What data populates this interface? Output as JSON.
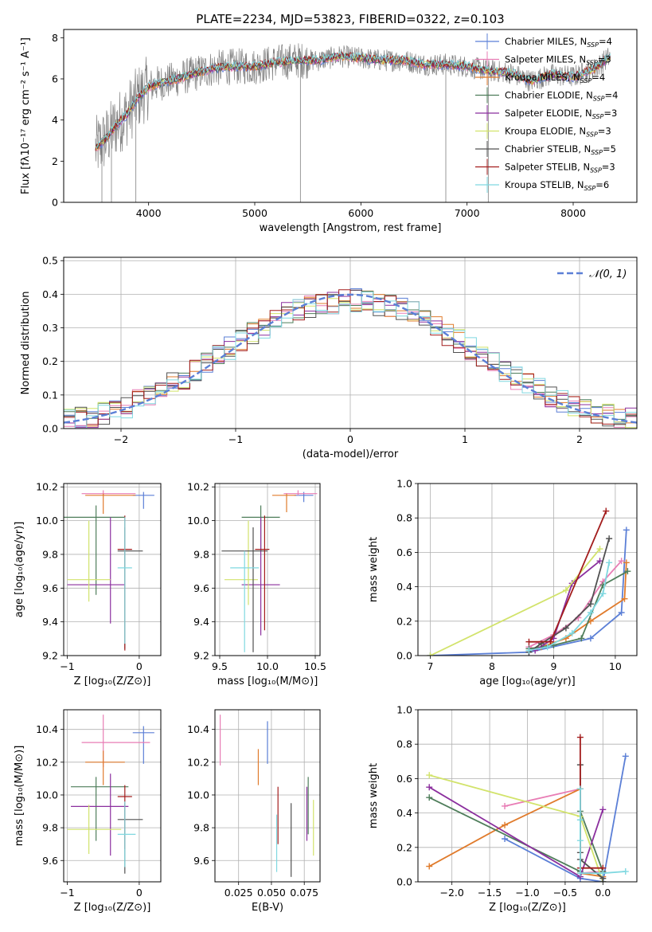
{
  "figure": {
    "title": "PLATE=2234, MJD=53823, FIBERID=0322, z=0.103"
  },
  "series_meta": [
    {
      "name": "Chabrier MILES",
      "nssp": "4",
      "color": "#5b7fd6"
    },
    {
      "name": "Salpeter MILES",
      "nssp": "3",
      "color": "#e87db5"
    },
    {
      "name": "Kroupa MILES",
      "nssp": "4",
      "color": "#e07b2c"
    },
    {
      "name": "Chabrier ELODIE",
      "nssp": "4",
      "color": "#4e7d5a"
    },
    {
      "name": "Salpeter ELODIE",
      "nssp": "3",
      "color": "#8b2f9e"
    },
    {
      "name": "Kroupa ELODIE",
      "nssp": "3",
      "color": "#d2e36b"
    },
    {
      "name": "Chabrier STELIB",
      "nssp": "5",
      "color": "#505050"
    },
    {
      "name": "Salpeter STELIB",
      "nssp": "3",
      "color": "#a31d1d"
    },
    {
      "name": "Kroupa STELIB",
      "nssp": "6",
      "color": "#7fd8e0"
    }
  ],
  "chart_data": [
    {
      "id": "spectrum",
      "type": "line",
      "xlabel": "wavelength [Angstrom, rest frame]",
      "ylabel": "Flux [fλ10⁻¹⁷ erg cm⁻² s⁻¹ A⁻¹]",
      "xlim": [
        3200,
        8600
      ],
      "ylim": [
        0,
        8.4
      ],
      "xticks": [
        4000,
        5000,
        6000,
        7000,
        8000
      ],
      "yticks": [
        0,
        2,
        4,
        6,
        8
      ],
      "data_color": "#808080",
      "data_x_range": [
        3500,
        8350
      ],
      "continuum": {
        "x": [
          3500,
          3600,
          3700,
          3800,
          3900,
          4000,
          4100,
          4200,
          4400,
          4600,
          4800,
          5000,
          5200,
          5400,
          5600,
          5800,
          6000,
          6200,
          6400,
          6600,
          6800,
          7000,
          7200,
          7400,
          7600,
          7800,
          8000,
          8200,
          8350
        ],
        "y": [
          2.6,
          3.1,
          3.8,
          4.3,
          5.1,
          5.6,
          5.8,
          5.9,
          6.2,
          6.5,
          6.6,
          6.6,
          6.8,
          6.9,
          6.9,
          7.1,
          7.0,
          6.9,
          6.9,
          6.7,
          6.7,
          6.6,
          6.4,
          6.3,
          5.9,
          6.2,
          6.1,
          6.5,
          7.1
        ]
      },
      "legend": "top-right"
    },
    {
      "id": "residual-hist",
      "type": "histogram",
      "xlabel": "(data-model)/error",
      "ylabel": "Normed distribution",
      "xlim": [
        -2.5,
        2.5
      ],
      "ylim": [
        0,
        0.51
      ],
      "xticks": [
        -2,
        -1,
        0,
        1,
        2
      ],
      "yticks": [
        0.0,
        0.1,
        0.2,
        0.3,
        0.4,
        0.5
      ],
      "grid": true,
      "bin_width": 0.1,
      "gaussian": {
        "label": "𝒩(0, 1)",
        "mu": 0,
        "sigma": 1
      },
      "envelope": {
        "x": [
          -2.5,
          -2.0,
          -1.5,
          -1.0,
          -0.5,
          0.0,
          0.5,
          1.0,
          1.5,
          2.0,
          2.5
        ],
        "y": [
          0.02,
          0.056,
          0.14,
          0.25,
          0.355,
          0.385,
          0.355,
          0.25,
          0.14,
          0.056,
          0.025
        ]
      }
    },
    {
      "id": "age-vs-Z",
      "type": "errorbar",
      "xlabel": "Z [log₁₀(Z/Z⊙)]",
      "ylabel": "age  [log₁₀(age/yr)]",
      "xlim": [
        -1.05,
        0.3
      ],
      "ylim": [
        9.2,
        10.22
      ],
      "xticks": [
        -1,
        0
      ],
      "yticks": [
        9.2,
        9.4,
        9.6,
        9.8,
        10.0,
        10.2
      ],
      "grid": true,
      "points": [
        {
          "x": 0.06,
          "xerr": [
            0.15,
            0.15
          ],
          "y": 10.15,
          "yerr": [
            0.08,
            0.02
          ]
        },
        {
          "x": -0.5,
          "xerr": [
            0.3,
            0.45
          ],
          "y": 10.16,
          "yerr": [
            0.01,
            0.02
          ]
        },
        {
          "x": -0.5,
          "xerr": [
            0.25,
            0.45
          ],
          "y": 10.15,
          "yerr": [
            0.11,
            0.01
          ]
        },
        {
          "x": -0.6,
          "xerr": [
            0.45,
            0.4
          ],
          "y": 10.02,
          "yerr": [
            0.46,
            0.07
          ]
        },
        {
          "x": -0.4,
          "xerr": [
            0.6,
            0.2
          ],
          "y": 9.62,
          "yerr": [
            0.23,
            0.4
          ]
        },
        {
          "x": -0.7,
          "xerr": [
            0.3,
            0.3
          ],
          "y": 9.65,
          "yerr": [
            0.13,
            0.35
          ]
        },
        {
          "x": -0.2,
          "xerr": [
            0.1,
            0.25
          ],
          "y": 9.82,
          "yerr": [
            0.58,
            0.14
          ]
        },
        {
          "x": -0.2,
          "xerr": [
            0.1,
            0.1
          ],
          "y": 9.83,
          "yerr": [
            0.6,
            0.2
          ]
        },
        {
          "x": -0.2,
          "xerr": [
            0.1,
            0.1
          ],
          "y": 9.72,
          "yerr": [
            0.45,
            0.3
          ]
        }
      ]
    },
    {
      "id": "age-vs-mass",
      "type": "errorbar",
      "xlabel": "mass [log₁₀(M/M⊙)]",
      "ylabel": "",
      "xlim": [
        9.45,
        10.55
      ],
      "ylim": [
        9.2,
        10.22
      ],
      "xticks": [
        9.5,
        10.0,
        10.5
      ],
      "yticks": [
        9.2,
        9.4,
        9.6,
        9.8,
        10.0,
        10.2
      ],
      "grid": true,
      "points": [
        {
          "x": 10.38,
          "xerr": [
            0.1,
            0.1
          ],
          "y": 10.15,
          "yerr": [
            0.04,
            0.02
          ]
        },
        {
          "x": 10.32,
          "xerr": [
            0.15,
            0.2
          ],
          "y": 10.16,
          "yerr": [
            0.01,
            0.02
          ]
        },
        {
          "x": 10.2,
          "xerr": [
            0.15,
            0.1
          ],
          "y": 10.15,
          "yerr": [
            0.1,
            0.01
          ]
        },
        {
          "x": 9.93,
          "xerr": [
            0.2,
            0.2
          ],
          "y": 10.02,
          "yerr": [
            0.2,
            0.07
          ]
        },
        {
          "x": 9.93,
          "xerr": [
            0.2,
            0.2
          ],
          "y": 9.62,
          "yerr": [
            0.3,
            0.4
          ]
        },
        {
          "x": 9.8,
          "xerr": [
            0.25,
            0.1
          ],
          "y": 9.65,
          "yerr": [
            0.15,
            0.35
          ]
        },
        {
          "x": 9.85,
          "xerr": [
            0.33,
            0.15
          ],
          "y": 9.82,
          "yerr": [
            0.6,
            0.14
          ]
        },
        {
          "x": 9.97,
          "xerr": [
            0.1,
            0.05
          ],
          "y": 9.83,
          "yerr": [
            0.48,
            0.2
          ]
        },
        {
          "x": 9.76,
          "xerr": [
            0.15,
            0.15
          ],
          "y": 9.72,
          "yerr": [
            0.5,
            0.1
          ]
        }
      ]
    },
    {
      "id": "massweight-vs-age",
      "type": "line",
      "xlabel": "age  [log₁₀(age/yr)]",
      "ylabel": "mass weight",
      "xlim": [
        6.8,
        10.35
      ],
      "ylim": [
        0,
        1.0
      ],
      "xticks": [
        7,
        8,
        9,
        10
      ],
      "yticks": [
        0.0,
        0.2,
        0.4,
        0.6,
        0.8,
        1.0
      ],
      "grid": true,
      "series": [
        {
          "x": [
            7.0,
            8.6,
            9.6,
            10.1,
            10.18
          ],
          "y": [
            0.0,
            0.02,
            0.1,
            0.25,
            0.73
          ]
        },
        {
          "x": [
            8.6,
            9.0,
            9.4,
            9.8,
            10.1
          ],
          "y": [
            0.05,
            0.12,
            0.22,
            0.43,
            0.55
          ]
        },
        {
          "x": [
            8.8,
            9.2,
            9.6,
            10.15,
            10.18
          ],
          "y": [
            0.05,
            0.1,
            0.2,
            0.33,
            0.54
          ]
        },
        {
          "x": [
            8.6,
            9.0,
            9.45,
            9.8,
            10.2
          ],
          "y": [
            0.04,
            0.06,
            0.1,
            0.41,
            0.49
          ]
        },
        {
          "x": [
            8.7,
            9.0,
            9.3,
            9.75
          ],
          "y": [
            0.03,
            0.1,
            0.42,
            0.55
          ]
        },
        {
          "x": [
            7.0,
            9.2,
            9.75
          ],
          "y": [
            0.0,
            0.38,
            0.62
          ]
        },
        {
          "x": [
            8.6,
            8.8,
            9.2,
            9.6,
            9.9
          ],
          "y": [
            0.02,
            0.07,
            0.16,
            0.3,
            0.68
          ]
        },
        {
          "x": [
            8.6,
            8.95,
            9.85
          ],
          "y": [
            0.08,
            0.08,
            0.84
          ]
        },
        {
          "x": [
            8.6,
            8.9,
            9.3,
            9.6,
            9.8,
            9.9
          ],
          "y": [
            0.03,
            0.05,
            0.13,
            0.25,
            0.36,
            0.54
          ]
        }
      ]
    },
    {
      "id": "mass-vs-Z",
      "type": "errorbar",
      "xlabel": "Z [log₁₀(Z/Z⊙)]",
      "ylabel": "mass [log₁₀(M/M⊙)]",
      "xlim": [
        -1.05,
        0.3
      ],
      "ylim": [
        9.47,
        10.52
      ],
      "xticks": [
        -1,
        0
      ],
      "yticks": [
        9.6,
        9.8,
        10.0,
        10.2,
        10.4
      ],
      "grid": true,
      "points": [
        {
          "x": 0.06,
          "xerr": [
            0.15,
            0.15
          ],
          "y": 10.38,
          "yerr": [
            0.19,
            0.04
          ]
        },
        {
          "x": -0.5,
          "xerr": [
            0.3,
            0.65
          ],
          "y": 10.32,
          "yerr": [
            0.15,
            0.17
          ]
        },
        {
          "x": -0.5,
          "xerr": [
            0.25,
            0.3
          ],
          "y": 10.2,
          "yerr": [
            0.14,
            0.07
          ]
        },
        {
          "x": -0.6,
          "xerr": [
            0.35,
            0.45
          ],
          "y": 10.05,
          "yerr": [
            0.33,
            0.06
          ]
        },
        {
          "x": -0.4,
          "xerr": [
            0.55,
            0.25
          ],
          "y": 9.93,
          "yerr": [
            0.3,
            0.2
          ]
        },
        {
          "x": -0.7,
          "xerr": [
            0.3,
            0.45
          ],
          "y": 9.79,
          "yerr": [
            0.15,
            0.15
          ]
        },
        {
          "x": -0.2,
          "xerr": [
            0.1,
            0.25
          ],
          "y": 9.85,
          "yerr": [
            0.33,
            0.1
          ]
        },
        {
          "x": -0.2,
          "xerr": [
            0.1,
            0.1
          ],
          "y": 9.99,
          "yerr": [
            0.32,
            0.07
          ]
        },
        {
          "x": -0.2,
          "xerr": [
            0.1,
            0.15
          ],
          "y": 9.76,
          "yerr": [
            0.2,
            0.2
          ]
        }
      ]
    },
    {
      "id": "mass-vs-ebv",
      "type": "errorbar",
      "xlabel": "E(B-V)",
      "ylabel": "",
      "xlim": [
        0.007,
        0.087
      ],
      "ylim": [
        9.47,
        10.52
      ],
      "xticks": [
        0.025,
        0.05,
        0.075
      ],
      "xticklabels": [
        "0.025",
        "0.050",
        "0.075"
      ],
      "yticks": [
        9.6,
        9.8,
        10.0,
        10.2,
        10.4
      ],
      "grid": true,
      "points": [
        {
          "x": 0.047,
          "xerr": [
            0,
            0
          ],
          "y": 10.32,
          "yerr": [
            0.13,
            0.13
          ]
        },
        {
          "x": 0.011,
          "xerr": [
            0,
            0
          ],
          "y": 10.33,
          "yerr": [
            0.15,
            0.16
          ]
        },
        {
          "x": 0.04,
          "xerr": [
            0,
            0
          ],
          "y": 10.17,
          "yerr": [
            0.11,
            0.11
          ]
        },
        {
          "x": 0.078,
          "xerr": [
            0,
            0
          ],
          "y": 9.98,
          "yerr": [
            0.22,
            0.13
          ]
        },
        {
          "x": 0.077,
          "xerr": [
            0,
            0
          ],
          "y": 9.9,
          "yerr": [
            0.18,
            0.15
          ]
        },
        {
          "x": 0.082,
          "xerr": [
            0,
            0
          ],
          "y": 9.8,
          "yerr": [
            0.17,
            0.17
          ]
        },
        {
          "x": 0.065,
          "xerr": [
            0,
            0
          ],
          "y": 9.7,
          "yerr": [
            0.2,
            0.25
          ]
        },
        {
          "x": 0.055,
          "xerr": [
            0,
            0
          ],
          "y": 9.87,
          "yerr": [
            0.17,
            0.18
          ]
        },
        {
          "x": 0.054,
          "xerr": [
            0,
            0
          ],
          "y": 9.7,
          "yerr": [
            0.17,
            0.18
          ]
        }
      ]
    },
    {
      "id": "massweight-vs-Z",
      "type": "line",
      "xlabel": "Z [log₁₀(Z/Z⊙)]",
      "ylabel": "mass weight",
      "xlim": [
        -2.45,
        0.45
      ],
      "ylim": [
        0,
        1.0
      ],
      "xticks": [
        -2.0,
        -1.5,
        -1.0,
        -0.5,
        0.0
      ],
      "xticklabels": [
        "−2.0",
        "−1.5",
        "−1.0",
        "−0.5",
        "0.0"
      ],
      "yticks": [
        0.0,
        0.2,
        0.4,
        0.6,
        0.8,
        1.0
      ],
      "grid": true,
      "series": [
        {
          "x": [
            -1.3,
            -0.3,
            0.0,
            0.3
          ],
          "y": [
            0.25,
            0.02,
            0.0,
            0.73
          ]
        },
        {
          "x": [
            -1.3,
            -0.3,
            -0.3,
            0.0
          ],
          "y": [
            0.44,
            0.54,
            0.05,
            0.06
          ]
        },
        {
          "x": [
            -2.3,
            -1.3,
            -0.3,
            -0.3,
            0.0
          ],
          "y": [
            0.09,
            0.33,
            0.54,
            0.05,
            0.03
          ]
        },
        {
          "x": [
            -2.3,
            -0.3,
            -0.3,
            0.0
          ],
          "y": [
            0.49,
            0.06,
            0.41,
            0.06
          ]
        },
        {
          "x": [
            -2.3,
            -0.3,
            0.0
          ],
          "y": [
            0.55,
            0.03,
            0.42
          ]
        },
        {
          "x": [
            -2.3,
            -0.3,
            0.0
          ],
          "y": [
            0.62,
            0.38,
            0.0
          ]
        },
        {
          "x": [
            -0.3,
            -0.3,
            -0.3,
            0.0,
            0.0
          ],
          "y": [
            0.68,
            0.17,
            0.13,
            0.02,
            0.0
          ]
        },
        {
          "x": [
            -0.3,
            -0.3,
            0.0
          ],
          "y": [
            0.84,
            0.08,
            0.08
          ]
        },
        {
          "x": [
            -0.3,
            -0.3,
            -0.3,
            -0.3,
            0.0,
            0.3
          ],
          "y": [
            0.54,
            0.36,
            0.24,
            0.05,
            0.05,
            0.06
          ]
        }
      ]
    }
  ]
}
